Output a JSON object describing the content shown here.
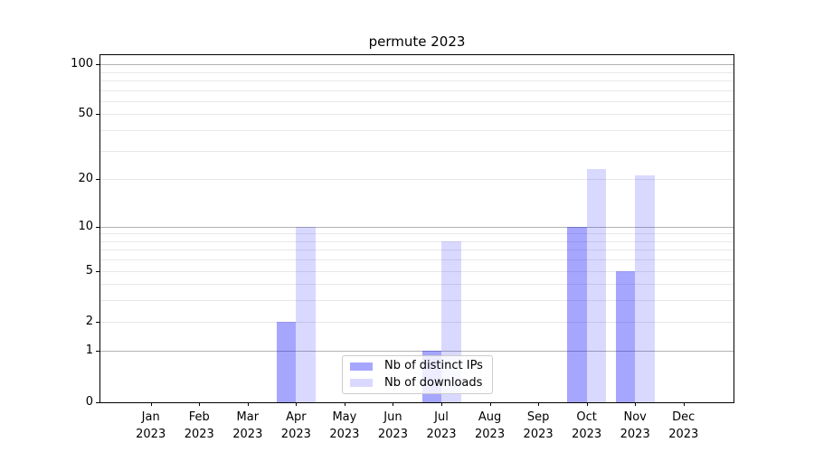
{
  "chart_data": {
    "type": "bar",
    "title": "permute 2023",
    "categories": [
      "Jan",
      "Feb",
      "Mar",
      "Apr",
      "May",
      "Jun",
      "Jul",
      "Aug",
      "Sep",
      "Oct",
      "Nov",
      "Dec"
    ],
    "x_second_line": "2023",
    "series": [
      {
        "name": "Nb of distinct IPs",
        "color": "rgba(0,0,255,0.35)",
        "values": [
          0,
          0,
          0,
          2,
          0,
          0,
          1,
          0,
          0,
          10,
          5,
          0
        ]
      },
      {
        "name": "Nb of downloads",
        "color": "rgba(0,0,255,0.15)",
        "values": [
          0,
          0,
          0,
          10,
          0,
          0,
          8,
          0,
          0,
          23,
          21,
          0
        ]
      }
    ],
    "yscale": "log10(1+x)",
    "ylim": [
      0,
      113
    ],
    "yticks": [
      0,
      1,
      2,
      5,
      10,
      20,
      50,
      100
    ],
    "ytick_labels": [
      "0",
      "1",
      "2",
      "5",
      "10",
      "20",
      "50",
      "100"
    ],
    "major_gridlines": [
      1,
      10,
      100
    ],
    "minor_gridlines": [
      2,
      3,
      4,
      5,
      6,
      7,
      8,
      9,
      20,
      30,
      40,
      50,
      60,
      70,
      80,
      90
    ],
    "grid": "on",
    "legend_position": "lower center",
    "colors": {
      "grid_major": "#b2b2b2",
      "grid_minor": "#e8e8e8",
      "spine": "#000000",
      "background": "#ffffff",
      "text": "#000000"
    }
  }
}
